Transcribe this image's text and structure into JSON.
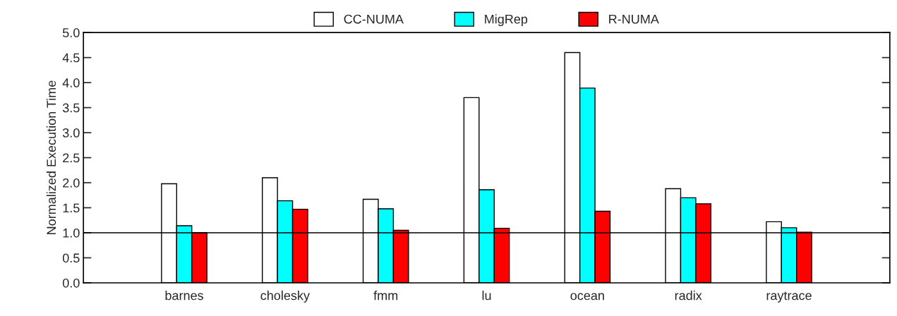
{
  "chart_data": {
    "type": "bar",
    "ylabel": "Normalized Execution Time",
    "categories": [
      "barnes",
      "cholesky",
      "fmm",
      "lu",
      "ocean",
      "radix",
      "raytrace"
    ],
    "series": [
      {
        "name": "CC-NUMA",
        "color": "#ffffff",
        "values": [
          1.98,
          2.1,
          1.67,
          3.7,
          4.6,
          1.88,
          1.22
        ]
      },
      {
        "name": "MigRep",
        "color": "#00ffff",
        "values": [
          1.14,
          1.64,
          1.48,
          1.86,
          3.89,
          1.7,
          1.1
        ]
      },
      {
        "name": "R-NUMA",
        "color": "#ff0000",
        "values": [
          1.0,
          1.47,
          1.05,
          1.09,
          1.43,
          1.58,
          1.01
        ]
      }
    ],
    "ylim": [
      0,
      5
    ],
    "yticks": [
      {
        "value": 0,
        "label": "0.0"
      },
      0.5,
      {
        "value": 1,
        "label": "1.0"
      },
      1.5,
      {
        "value": 2,
        "label": "2.0"
      },
      2.5,
      {
        "value": 3,
        "label": "3.0"
      },
      3.5,
      {
        "value": 4,
        "label": "4.0"
      },
      4.5,
      {
        "value": 5,
        "label": "5.0"
      }
    ],
    "ref_lines": [
      {
        "axis": "y",
        "value": 1.0,
        "color": "#000000"
      }
    ],
    "legend": "top",
    "grid": false
  }
}
